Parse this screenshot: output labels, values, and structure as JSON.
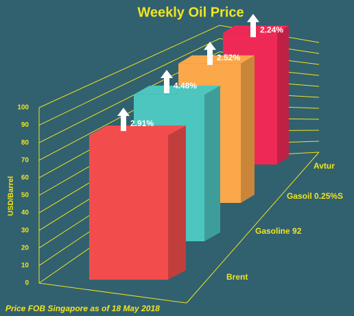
{
  "chart_data": {
    "type": "bar3d",
    "title": "Weekly Oil Price",
    "y_label": "USD/Barrel",
    "footnote": "Price FOB Singapore as of 18 May 2018",
    "categories": [
      "Brent",
      "Gasoline 92",
      "Gasoil 0.25%S",
      "Avtur"
    ],
    "values": [
      79,
      86,
      88,
      90
    ],
    "annotations": [
      "2.91%",
      "4.48%",
      "2.52%",
      "2.24%"
    ],
    "colors": [
      "#f24d4c",
      "#4cc6bf",
      "#fba84a",
      "#ef2956"
    ],
    "ylim": [
      0,
      100
    ],
    "yticks": [
      0,
      10,
      20,
      30,
      40,
      50,
      60,
      70,
      80,
      90,
      100
    ],
    "grid": true
  }
}
